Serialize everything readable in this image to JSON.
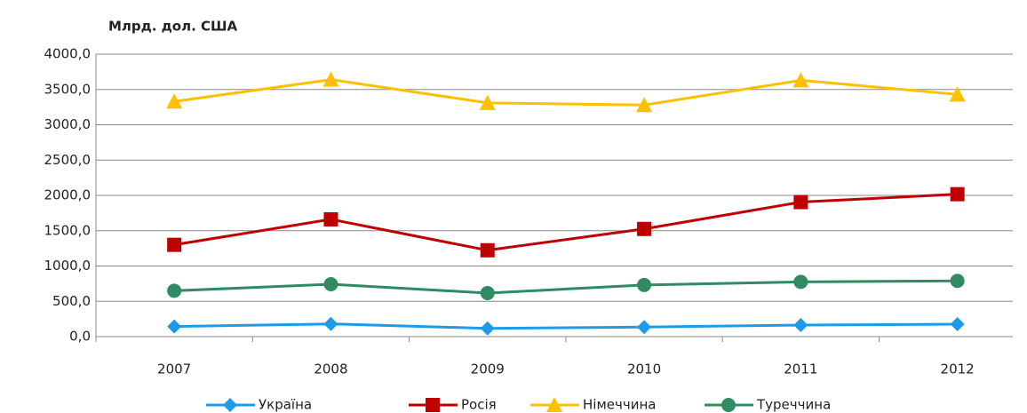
{
  "chart_data": {
    "type": "line",
    "y_label": "Млрд. дол. США",
    "categories": [
      "2007",
      "2008",
      "2009",
      "2010",
      "2011",
      "2012"
    ],
    "series": [
      {
        "name": "Україна",
        "color": "#1e9be8",
        "marker": "diamond",
        "values": [
          143,
          180,
          117,
          136,
          163,
          176
        ]
      },
      {
        "name": "Росія",
        "color": "#c00000",
        "marker": "square",
        "values": [
          1300,
          1661,
          1223,
          1525,
          1905,
          2017
        ]
      },
      {
        "name": "Німеччина",
        "color": "#ffc000",
        "marker": "triangle",
        "values": [
          3330,
          3640,
          3310,
          3280,
          3630,
          3430
        ]
      },
      {
        "name": "Туреччина",
        "color": "#2e8b62",
        "marker": "circle",
        "values": [
          649,
          742,
          617,
          731,
          775,
          789
        ]
      }
    ],
    "ylim": [
      0,
      4000
    ],
    "yticks": [
      {
        "value": 0,
        "label": "0,0"
      },
      {
        "value": 500,
        "label": "500,0"
      },
      {
        "value": 1000,
        "label": "1000,0"
      },
      {
        "value": 1500,
        "label": "1500,0"
      },
      {
        "value": 2000,
        "label": "2000,0"
      },
      {
        "value": 2500,
        "label": "2500,0"
      },
      {
        "value": 3000,
        "label": "3000,0"
      },
      {
        "value": 3500,
        "label": "3500,0"
      },
      {
        "value": 4000,
        "label": "4000,0"
      }
    ],
    "grid": true,
    "legend": "bottom"
  }
}
